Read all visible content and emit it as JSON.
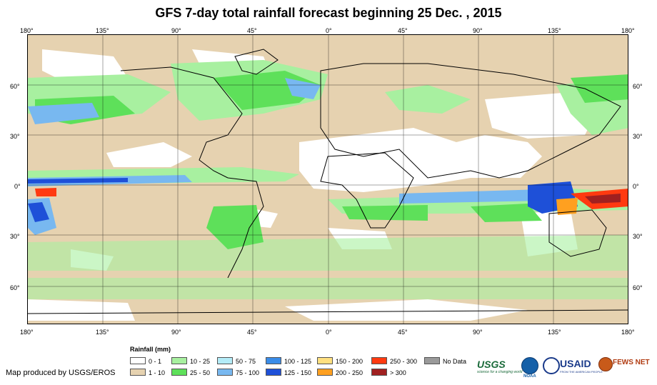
{
  "title": "GFS 7-day total rainfall forecast beginning 25 Dec. , 2015",
  "axes": {
    "lon_labels": [
      "180°",
      "135°",
      "90°",
      "45°",
      "0°",
      "45°",
      "90°",
      "135°",
      "180°"
    ],
    "lat_labels_left": [
      "60°",
      "30°",
      "0°",
      "30°",
      "60°"
    ],
    "lat_labels_right": [
      "60°",
      "30°",
      "0°",
      "30°",
      "60°"
    ]
  },
  "legend": {
    "title": "Rainfall (mm)",
    "items": [
      {
        "label": "0 - 1",
        "color": "#ffffff"
      },
      {
        "label": "1 - 10",
        "color": "#e6d2b0"
      },
      {
        "label": "10 - 25",
        "color": "#a8f0a0"
      },
      {
        "label": "25 - 50",
        "color": "#5ee05a"
      },
      {
        "label": "50 - 75",
        "color": "#b4ecf8"
      },
      {
        "label": "75 - 100",
        "color": "#78b8f0"
      },
      {
        "label": "100 - 125",
        "color": "#3a8ce8"
      },
      {
        "label": "125 - 150",
        "color": "#1e50d8"
      },
      {
        "label": "150 - 200",
        "color": "#ffe080"
      },
      {
        "label": "200 - 250",
        "color": "#ffa020"
      },
      {
        "label": "250 - 300",
        "color": "#ff3a10"
      },
      {
        "label": "> 300",
        "color": "#a02020"
      },
      {
        "label": "No Data",
        "color": "#9a9a9a"
      }
    ]
  },
  "credit": "Map produced by USGS/EROS",
  "logos": {
    "usgs": "USGS",
    "usgs_tagline": "science for a changing world",
    "noaa": "NOAA",
    "usaid": "USAID",
    "usaid_tagline": "FROM THE AMERICAN PEOPLE",
    "fewsnet": "FEWS NET"
  }
}
